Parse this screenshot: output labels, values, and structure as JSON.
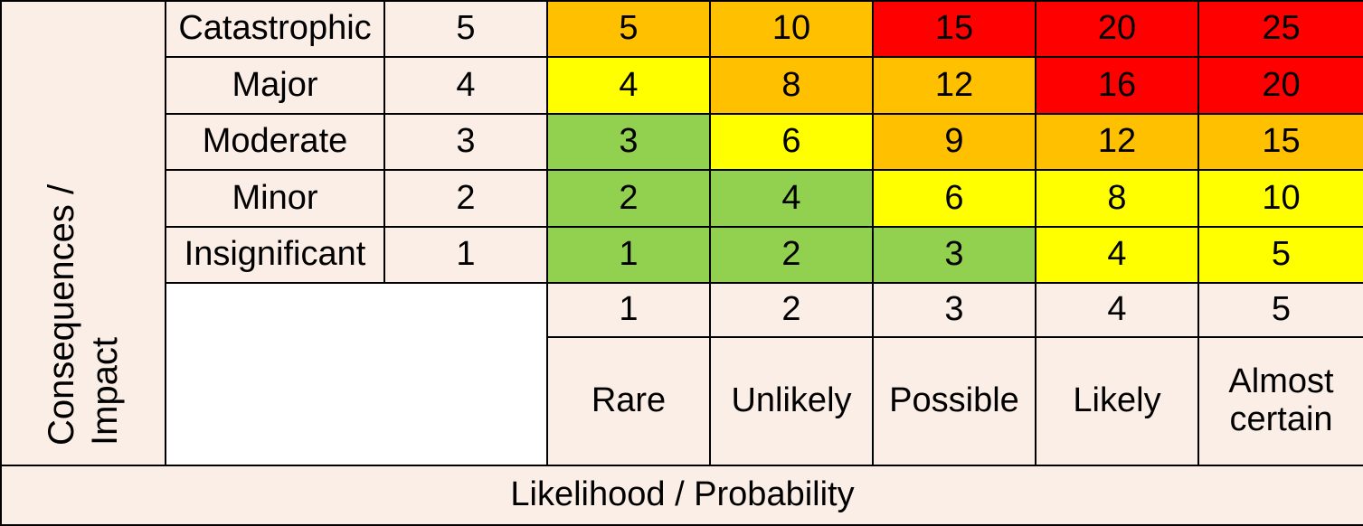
{
  "chart_data": {
    "type": "table",
    "title": "",
    "y_axis_label": "Consequences /\nImpact",
    "x_axis_label": "Likelihood / Probability",
    "consequences": [
      {
        "name": "Catastrophic",
        "score": "5",
        "cells": [
          "5",
          "10",
          "15",
          "20",
          "25"
        ],
        "colors": [
          "#ffc000",
          "#ffc000",
          "#ff0000",
          "#ff0000",
          "#ff0000"
        ]
      },
      {
        "name": "Major",
        "score": "4",
        "cells": [
          "4",
          "8",
          "12",
          "16",
          "20"
        ],
        "colors": [
          "#ffff00",
          "#ffc000",
          "#ffc000",
          "#ff0000",
          "#ff0000"
        ]
      },
      {
        "name": "Moderate",
        "score": "3",
        "cells": [
          "3",
          "6",
          "9",
          "12",
          "15"
        ],
        "colors": [
          "#92d050",
          "#ffff00",
          "#ffc000",
          "#ffc000",
          "#ffc000"
        ]
      },
      {
        "name": "Minor",
        "score": "2",
        "cells": [
          "2",
          "4",
          "6",
          "8",
          "10"
        ],
        "colors": [
          "#92d050",
          "#92d050",
          "#ffff00",
          "#ffff00",
          "#ffff00"
        ]
      },
      {
        "name": "Insignificant",
        "score": "1",
        "cells": [
          "1",
          "2",
          "3",
          "4",
          "5"
        ],
        "colors": [
          "#92d050",
          "#92d050",
          "#92d050",
          "#ffff00",
          "#ffff00"
        ]
      }
    ],
    "likelihood_scores": [
      "1",
      "2",
      "3",
      "4",
      "5"
    ],
    "likelihood_names": [
      "Rare",
      "Unlikely",
      "Possible",
      "Likely",
      "Almost certain"
    ],
    "legend_colors": {
      "low": "#92d050",
      "medium": "#ffff00",
      "high": "#ffc000",
      "extreme": "#ff0000"
    }
  }
}
